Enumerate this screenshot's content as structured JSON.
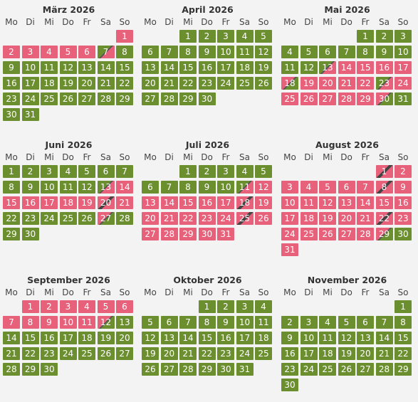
{
  "colors": {
    "free": "#6b8e2f",
    "booked": "#e8617b",
    "background": "#f3f3f3"
  },
  "weekdays": [
    "Mo",
    "Di",
    "Mi",
    "Do",
    "Fr",
    "Sa",
    "So"
  ],
  "months": [
    {
      "title": "März 2026",
      "offset": 6,
      "days": 31,
      "booked": [
        [
          1,
          1
        ],
        [
          2,
          6
        ]
      ],
      "arr": [
        7
      ],
      "dep": [],
      "chg": []
    },
    {
      "title": "April 2026",
      "offset": 2,
      "days": 30,
      "booked": [],
      "arr": [],
      "dep": [],
      "chg": []
    },
    {
      "title": "Mai 2026",
      "offset": 4,
      "days": 31,
      "booked": [
        [
          14,
          17
        ],
        [
          19,
          22
        ],
        [
          24,
          29
        ]
      ],
      "arr": [
        13,
        23
      ],
      "dep": [
        18,
        30
      ],
      "chg": []
    },
    {
      "title": "Juni 2026",
      "offset": 0,
      "days": 30,
      "booked": [
        [
          14,
          19
        ],
        [
          21,
          21
        ]
      ],
      "arr": [
        13
      ],
      "dep": [
        27
      ],
      "chg": [
        20
      ]
    },
    {
      "title": "Juli 2026",
      "offset": 2,
      "days": 31,
      "booked": [
        [
          12,
          17
        ],
        [
          19,
          24
        ],
        [
          26,
          31
        ]
      ],
      "arr": [
        11
      ],
      "dep": [],
      "chg": [
        18,
        25
      ]
    },
    {
      "title": "August 2026",
      "offset": 5,
      "days": 31,
      "booked": [
        [
          2,
          7
        ],
        [
          9,
          21
        ],
        [
          23,
          28
        ],
        [
          31,
          31
        ]
      ],
      "arr": [],
      "dep": [
        29
      ],
      "chg": [
        1,
        8,
        22
      ]
    },
    {
      "title": "September 2026",
      "offset": 1,
      "days": 30,
      "booked": [
        [
          1,
          11
        ]
      ],
      "arr": [],
      "dep": [
        12
      ],
      "chg": []
    },
    {
      "title": "Oktober 2026",
      "offset": 3,
      "days": 31,
      "booked": [],
      "arr": [],
      "dep": [],
      "chg": []
    },
    {
      "title": "November 2026",
      "offset": 6,
      "days": 30,
      "booked": [],
      "arr": [],
      "dep": [],
      "chg": []
    }
  ]
}
